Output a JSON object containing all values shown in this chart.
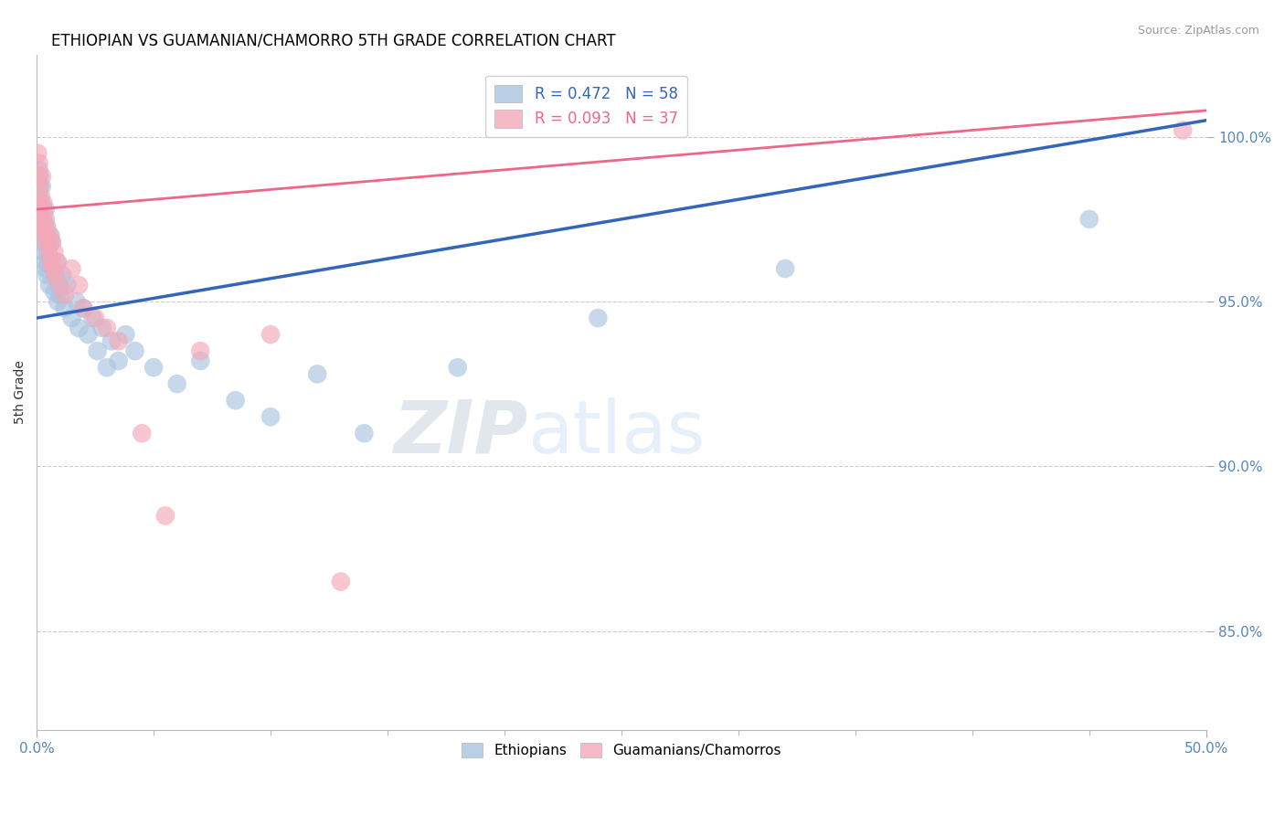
{
  "title": "ETHIOPIAN VS GUAMANIAN/CHAMORRO 5TH GRADE CORRELATION CHART",
  "source": "Source: ZipAtlas.com",
  "ylabel": "5th Grade",
  "xlim": [
    0.0,
    50.0
  ],
  "ylim": [
    82.0,
    102.5
  ],
  "yticks": [
    85.0,
    90.0,
    95.0,
    100.0
  ],
  "ytick_labels": [
    "85.0%",
    "90.0%",
    "95.0%",
    "100.0%"
  ],
  "blue_color": "#A8C4E0",
  "pink_color": "#F4A8B8",
  "blue_line_color": "#3366BB",
  "pink_line_color": "#EE6688",
  "legend_R_blue": "R = 0.472",
  "legend_N_blue": "N = 58",
  "legend_R_pink": "R = 0.093",
  "legend_N_pink": "N = 37",
  "background_color": "#FFFFFF",
  "grid_color": "#CCCCCC",
  "tick_color": "#5588BB",
  "blue_scatter_x": [
    0.05,
    0.07,
    0.08,
    0.1,
    0.12,
    0.13,
    0.15,
    0.18,
    0.2,
    0.22,
    0.25,
    0.28,
    0.3,
    0.32,
    0.35,
    0.38,
    0.4,
    0.42,
    0.45,
    0.48,
    0.5,
    0.55,
    0.6,
    0.65,
    0.7,
    0.75,
    0.8,
    0.85,
    0.9,
    0.95,
    1.0,
    1.1,
    1.2,
    1.3,
    1.5,
    1.7,
    1.8,
    2.0,
    2.2,
    2.4,
    2.6,
    2.8,
    3.0,
    3.2,
    3.5,
    3.8,
    4.2,
    5.0,
    6.0,
    7.0,
    8.5,
    10.0,
    12.0,
    14.0,
    18.0,
    24.0,
    32.0,
    45.0
  ],
  "blue_scatter_y": [
    97.8,
    98.2,
    97.5,
    99.0,
    98.5,
    98.8,
    97.2,
    98.0,
    97.0,
    98.5,
    96.8,
    97.5,
    96.5,
    97.0,
    96.2,
    97.8,
    96.0,
    97.3,
    95.8,
    96.5,
    96.2,
    95.5,
    97.0,
    96.8,
    96.0,
    95.3,
    95.8,
    96.2,
    95.0,
    95.5,
    95.2,
    95.8,
    94.8,
    95.5,
    94.5,
    95.0,
    94.2,
    94.8,
    94.0,
    94.5,
    93.5,
    94.2,
    93.0,
    93.8,
    93.2,
    94.0,
    93.5,
    93.0,
    92.5,
    93.2,
    92.0,
    91.5,
    92.8,
    91.0,
    93.0,
    94.5,
    96.0,
    97.5
  ],
  "pink_scatter_x": [
    0.05,
    0.08,
    0.1,
    0.12,
    0.15,
    0.18,
    0.2,
    0.23,
    0.25,
    0.28,
    0.3,
    0.35,
    0.38,
    0.4,
    0.45,
    0.5,
    0.55,
    0.6,
    0.65,
    0.7,
    0.75,
    0.8,
    0.9,
    1.0,
    1.2,
    1.5,
    1.8,
    2.0,
    2.5,
    3.0,
    3.5,
    4.5,
    5.5,
    7.0,
    10.0,
    13.0,
    49.0
  ],
  "pink_scatter_y": [
    99.5,
    98.8,
    99.2,
    98.5,
    97.8,
    98.2,
    97.5,
    98.8,
    97.2,
    98.0,
    97.8,
    97.0,
    97.5,
    96.8,
    97.2,
    96.5,
    97.0,
    96.2,
    96.8,
    96.0,
    96.5,
    95.8,
    96.2,
    95.5,
    95.2,
    96.0,
    95.5,
    94.8,
    94.5,
    94.2,
    93.8,
    91.0,
    88.5,
    93.5,
    94.0,
    86.5,
    100.2
  ],
  "blue_line_x": [
    0.0,
    50.0
  ],
  "blue_line_y": [
    94.5,
    100.5
  ],
  "pink_line_x": [
    0.0,
    50.0
  ],
  "pink_line_y": [
    97.8,
    100.8
  ],
  "dashed_line_y": 100.2
}
